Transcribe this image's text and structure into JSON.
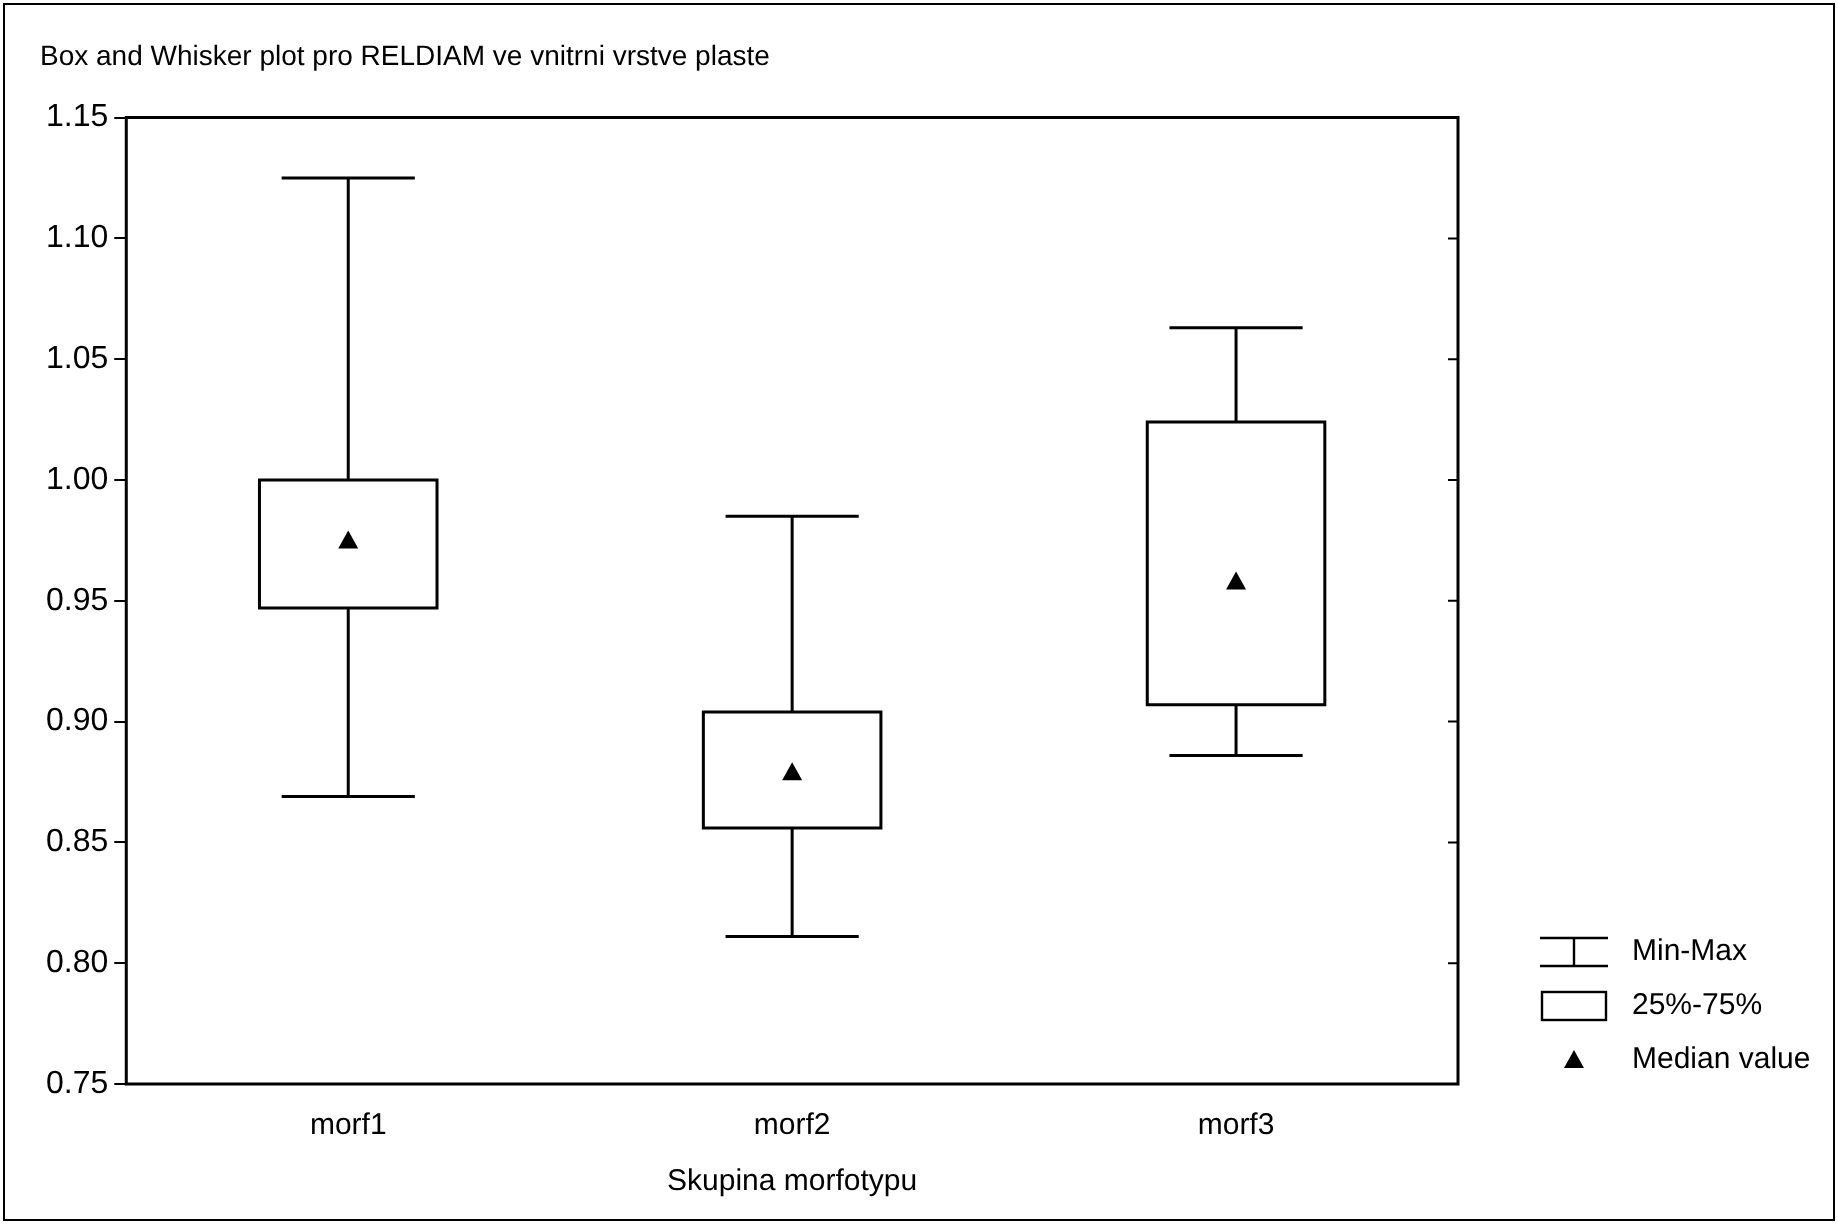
{
  "chart_data": {
    "type": "box",
    "title": "Box and Whisker plot pro RELDIAM ve vnitrni vrstve plaste",
    "xlabel": "Skupina morfotypu",
    "categories": [
      "morf1",
      "morf2",
      "morf3"
    ],
    "boxes": [
      {
        "low": 0.869,
        "q1": 0.947,
        "median": 0.975,
        "q3": 1.0,
        "high": 1.125
      },
      {
        "low": 0.811,
        "q1": 0.856,
        "median": 0.879,
        "q3": 0.904,
        "high": 0.985
      },
      {
        "low": 0.886,
        "q1": 0.907,
        "median": 0.958,
        "q3": 1.024,
        "high": 1.063
      }
    ],
    "ylim": [
      0.75,
      1.15
    ],
    "yticks": [
      {
        "value": 0.75,
        "label": "0.75"
      },
      {
        "value": 0.8,
        "label": "0.80"
      },
      {
        "value": 0.85,
        "label": "0.85"
      },
      {
        "value": 0.9,
        "label": "0.90"
      },
      {
        "value": 0.95,
        "label": "0.95"
      },
      {
        "value": 1.0,
        "label": "1.00"
      },
      {
        "value": 1.05,
        "label": "1.05"
      },
      {
        "value": 1.1,
        "label": "1.10"
      },
      {
        "value": 1.15,
        "label": "1.15"
      }
    ],
    "grid": false,
    "marker": "triangle",
    "annotations": [
      "Min-Max",
      "25%-75%",
      "Median value"
    ]
  }
}
